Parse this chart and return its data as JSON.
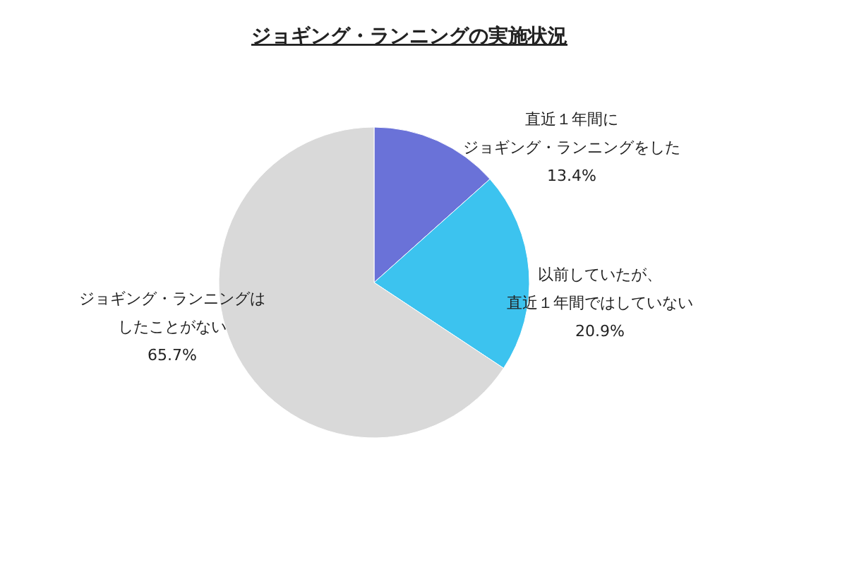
{
  "chart_data": {
    "type": "pie",
    "title": "ジョギング・ランニングの実施状況",
    "categories": [
      "直近１年間にジョギング・ランニングをした",
      "以前していたが、直近１年間ではしていない",
      "ジョギング・ランニングはしたことがない"
    ],
    "values": [
      13.4,
      20.9,
      65.7
    ],
    "colors": [
      "#6a72d8",
      "#3cc3ef",
      "#d9d9d9"
    ],
    "value_labels": [
      "13.4%",
      "20.9%",
      "65.7%"
    ]
  }
}
